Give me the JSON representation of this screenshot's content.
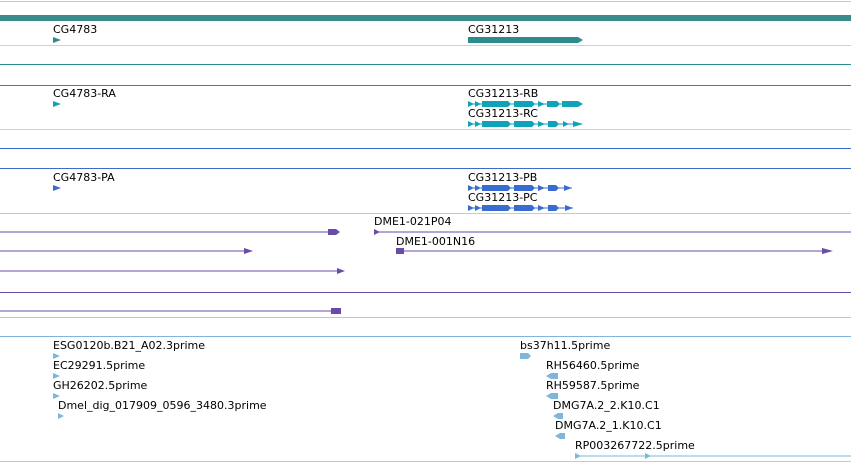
{
  "colors": {
    "gene": "#2E8B8B",
    "transcript": "#0FA3B8",
    "protein": "#3A6BD0",
    "clone": "#6A4BA8",
    "est": "#7EB6DC",
    "divider_gene": "#2E8B8B",
    "divider_clone": "#6A4BA8",
    "divider_est": "#7EB6DC",
    "top_bar": "#3A8C8C"
  },
  "gene_track": {
    "features": [
      {
        "label": "CG4783"
      },
      {
        "label": "CG31213"
      }
    ]
  },
  "transcript_track": {
    "features": [
      {
        "label": "CG4783-RA"
      },
      {
        "label": "CG31213-RB"
      },
      {
        "label": "CG31213-RC"
      }
    ]
  },
  "protein_track": {
    "features": [
      {
        "label": "CG4783-PA"
      },
      {
        "label": "CG31213-PB"
      },
      {
        "label": "CG31213-PC"
      }
    ]
  },
  "clone_track": {
    "features": [
      {
        "label": "DME1-021P04"
      },
      {
        "label": "DME1-001N16"
      }
    ]
  },
  "est_track": {
    "features": [
      {
        "label": "ESG0120b.B21_A02.3prime"
      },
      {
        "label": "EC29291.5prime"
      },
      {
        "label": "GH26202.5prime"
      },
      {
        "label": "Dmel_dig_017909_0596_3480.3prime"
      },
      {
        "label": "bs37h11.5prime"
      },
      {
        "label": "RH56460.5prime"
      },
      {
        "label": "RH59587.5prime"
      },
      {
        "label": "DMG7A.2_2.K10.C1"
      },
      {
        "label": "DMG7A.2_1.K10.C1"
      },
      {
        "label": "RP003267722.5prime"
      }
    ]
  }
}
